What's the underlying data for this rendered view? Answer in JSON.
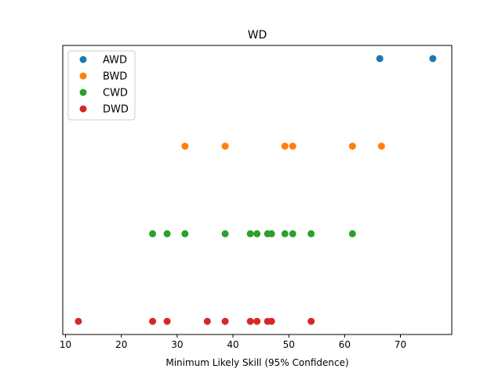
{
  "chart_data": {
    "type": "scatter",
    "title": "WD",
    "xlabel": "Minimum Likely Skill (95% Confidence)",
    "ylabel": "",
    "xlim": [
      9.5,
      79.2
    ],
    "x_ticks": [
      10,
      20,
      30,
      40,
      50,
      60,
      70
    ],
    "y_axis_ticks_visible": false,
    "grid": false,
    "legend_position": "top-left",
    "series": [
      {
        "name": "AWD",
        "color": "#1f77b4",
        "y_level": 3,
        "x": [
          66.3,
          75.8
        ]
      },
      {
        "name": "BWD",
        "color": "#ff7f0e",
        "y_level": 2,
        "x": [
          31.4,
          38.6,
          49.3,
          50.7,
          61.4,
          66.6
        ]
      },
      {
        "name": "CWD",
        "color": "#2ca02c",
        "y_level": 1,
        "x": [
          25.6,
          28.2,
          31.4,
          38.6,
          43.1,
          44.3,
          46.2,
          46.9,
          49.3,
          50.7,
          54.0,
          61.4
        ]
      },
      {
        "name": "DWD",
        "color": "#d62728",
        "y_level": 0,
        "x": [
          12.3,
          25.6,
          28.2,
          35.4,
          38.6,
          43.1,
          44.3,
          46.2,
          46.9,
          54.0
        ]
      }
    ]
  }
}
